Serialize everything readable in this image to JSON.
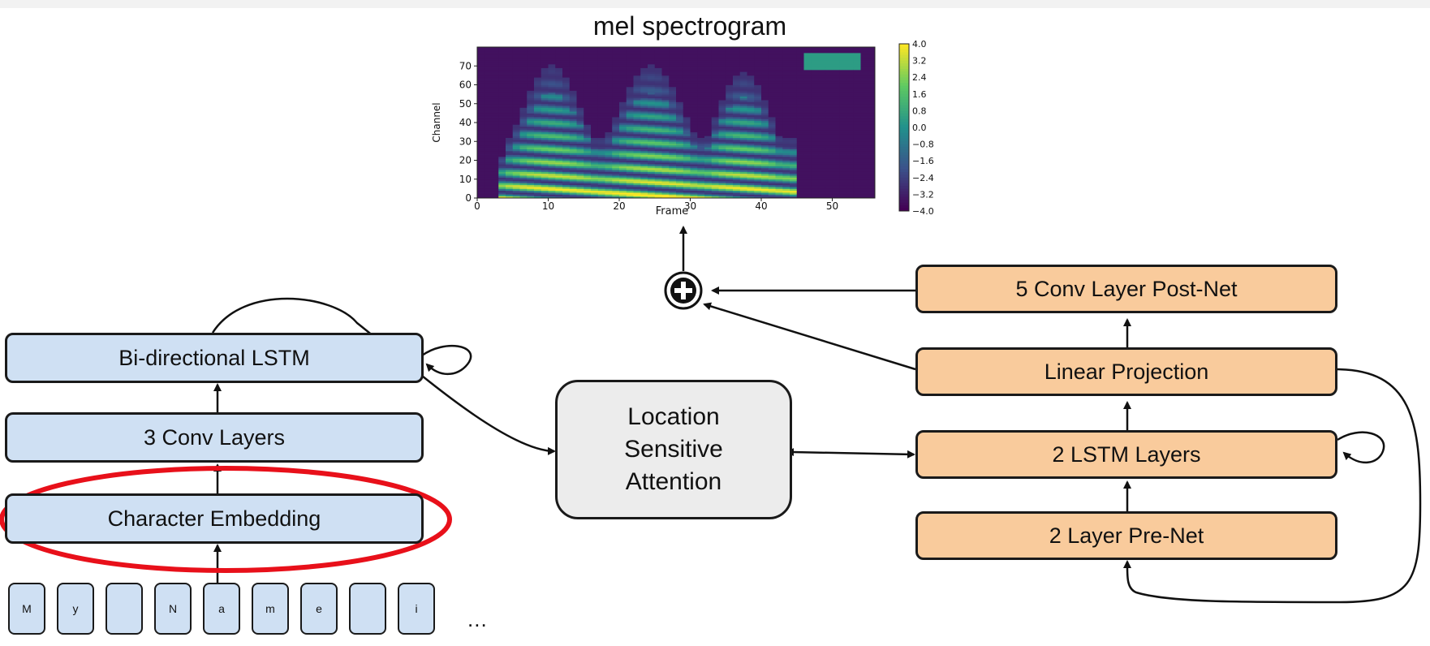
{
  "spectrogram": {
    "title": "mel spectrogram",
    "xlabel": "Frame",
    "ylabel": "Channel",
    "x_ticks": [
      "0",
      "10",
      "20",
      "30",
      "40",
      "50"
    ],
    "y_ticks": [
      "0",
      "10",
      "20",
      "30",
      "40",
      "50",
      "60",
      "70"
    ],
    "colorbar_ticks": [
      "4.0",
      "3.2",
      "2.4",
      "1.6",
      "0.8",
      "0.0",
      "−0.8",
      "−1.6",
      "−2.4",
      "−3.2",
      "−4.0"
    ],
    "colormap": "viridis"
  },
  "encoder": {
    "lstm": "Bi-directional LSTM",
    "conv": "3 Conv Layers",
    "embedding": "Character Embedding",
    "characters": [
      "M",
      "y",
      "",
      "N",
      "a",
      "m",
      "e",
      "",
      "i"
    ],
    "ellipsis": "...",
    "color": "#cfe0f3"
  },
  "attention": {
    "line1": "Location",
    "line2": "Sensitive",
    "line3": "Attention",
    "color": "#ececec"
  },
  "decoder": {
    "postnet": "5 Conv Layer Post-Net",
    "projection": "Linear Projection",
    "lstm": "2 LSTM Layers",
    "prenet": "2 Layer Pre-Net",
    "color": "#f9cb9c"
  },
  "highlight": {
    "color": "#e8101a",
    "target": "Character Embedding"
  },
  "sum_icon": "plus-circle-icon"
}
